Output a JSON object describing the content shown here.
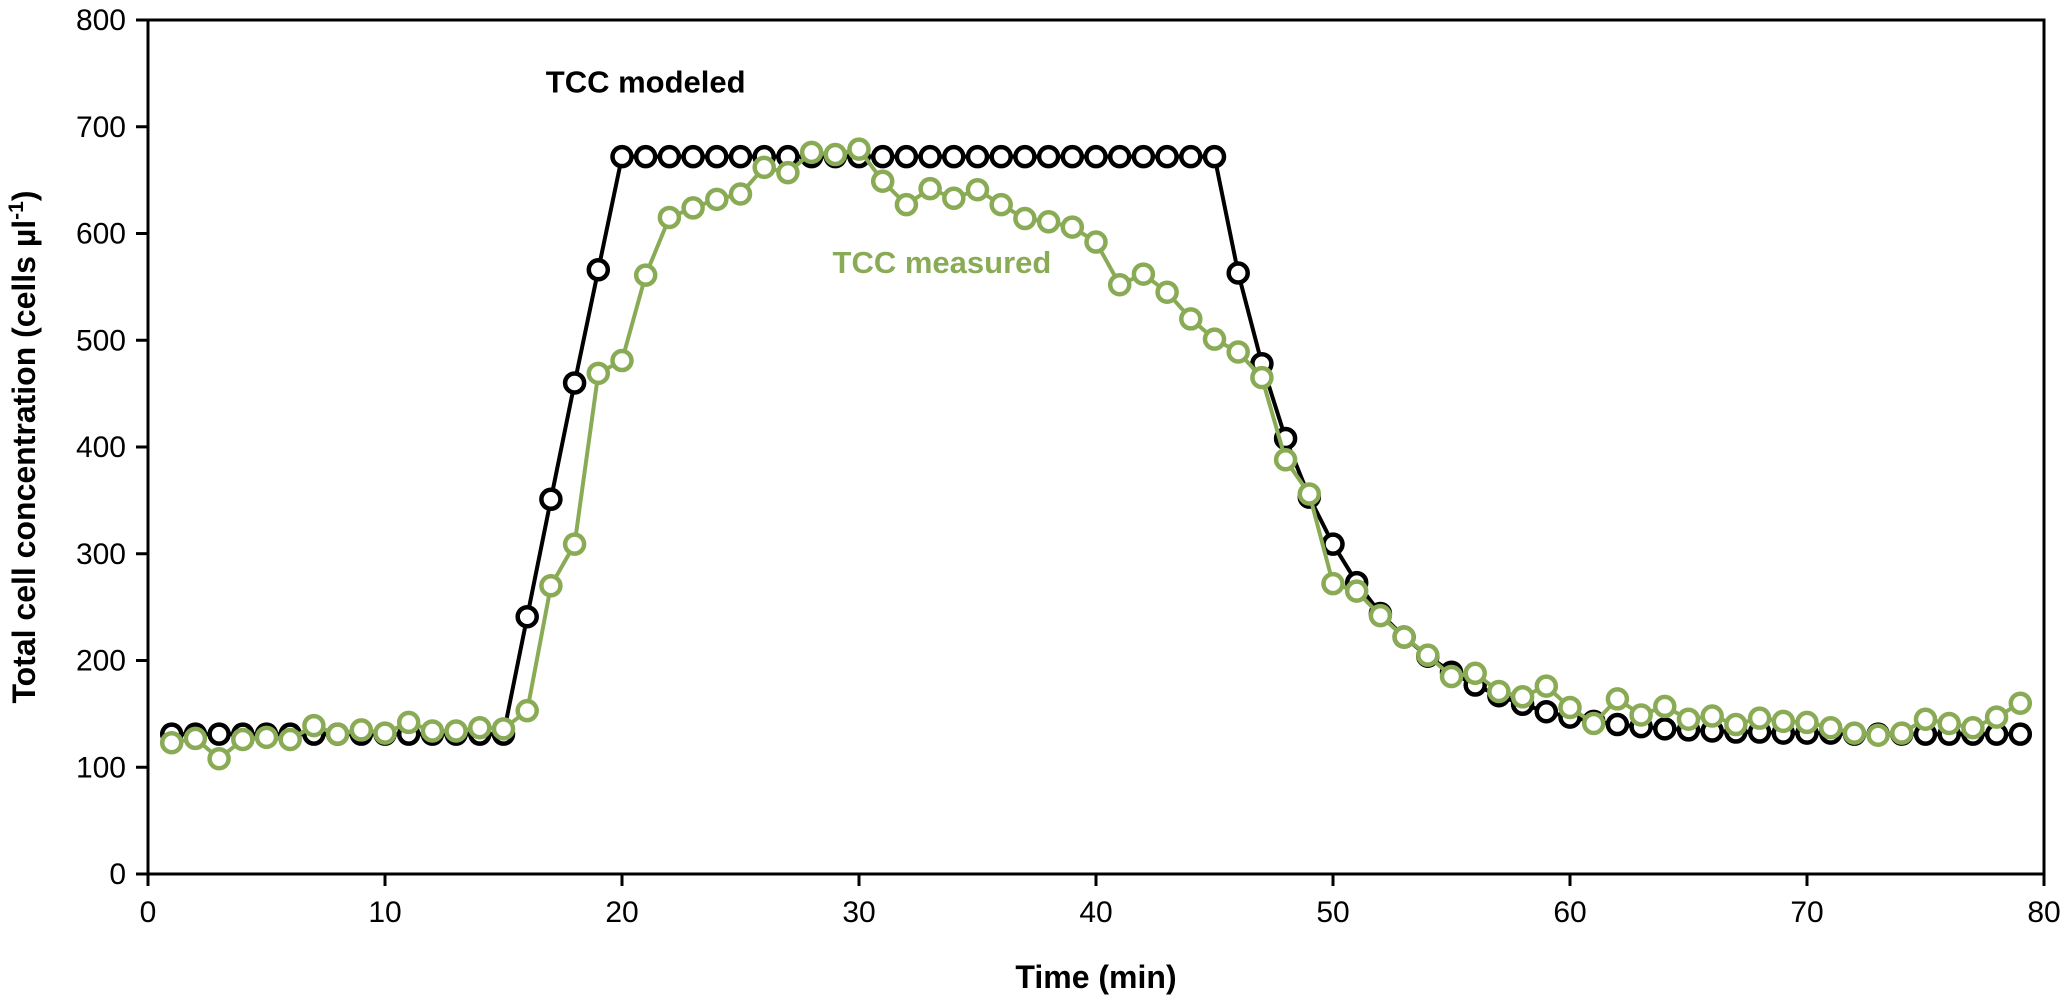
{
  "chart_data": {
    "type": "line",
    "title": "",
    "xlabel": "Time (min)",
    "ylabel_main": "Total cell concentration (cells µl",
    "ylabel_sup": "-1",
    "ylabel_close": ")",
    "xlim": [
      0,
      80
    ],
    "ylim": [
      0,
      800
    ],
    "xticks": [
      0,
      10,
      20,
      30,
      40,
      50,
      60,
      70,
      80
    ],
    "yticks": [
      0,
      100,
      200,
      300,
      400,
      500,
      600,
      700,
      800
    ],
    "grid": false,
    "series": [
      {
        "name": "TCC modeled",
        "color": "#000000",
        "marker": "open-circle",
        "x": [
          1,
          2,
          3,
          4,
          5,
          6,
          7,
          8,
          9,
          10,
          11,
          12,
          13,
          14,
          15,
          16,
          17,
          18,
          19,
          20,
          21,
          22,
          23,
          24,
          25,
          26,
          27,
          28,
          29,
          30,
          31,
          32,
          33,
          34,
          35,
          36,
          37,
          38,
          39,
          40,
          41,
          42,
          43,
          44,
          45,
          46,
          47,
          48,
          49,
          50,
          51,
          52,
          53,
          54,
          55,
          56,
          57,
          58,
          59,
          60,
          61,
          62,
          63,
          64,
          65,
          66,
          67,
          68,
          69,
          70,
          71,
          72,
          73,
          74,
          75,
          76,
          77,
          78,
          79
        ],
        "y": [
          131,
          131,
          131,
          131,
          131,
          131,
          131,
          131,
          131,
          131,
          131,
          131,
          131,
          131,
          131,
          241,
          351,
          460,
          566,
          672,
          672,
          672,
          672,
          672,
          672,
          672,
          672,
          672,
          672,
          672,
          672,
          672,
          672,
          672,
          672,
          672,
          672,
          672,
          672,
          672,
          672,
          672,
          672,
          672,
          672,
          563,
          478,
          408,
          353,
          309,
          273,
          244,
          222,
          204,
          189,
          177,
          167,
          159,
          152,
          147,
          143,
          140,
          138,
          136,
          135,
          134,
          133,
          133,
          132,
          132,
          132,
          131,
          131,
          131,
          131,
          131,
          131,
          131,
          131
        ]
      },
      {
        "name": "TCC measured",
        "color": "#8aab55",
        "marker": "open-circle",
        "x": [
          1,
          2,
          3,
          4,
          5,
          6,
          7,
          8,
          9,
          10,
          11,
          12,
          13,
          14,
          15,
          16,
          17,
          18,
          19,
          20,
          21,
          22,
          23,
          24,
          25,
          26,
          27,
          28,
          29,
          30,
          31,
          32,
          33,
          34,
          35,
          36,
          37,
          38,
          39,
          40,
          41,
          42,
          43,
          44,
          45,
          46,
          47,
          48,
          49,
          50,
          51,
          52,
          53,
          54,
          55,
          56,
          57,
          58,
          59,
          60,
          61,
          62,
          63,
          64,
          65,
          66,
          67,
          68,
          69,
          70,
          71,
          72,
          73,
          74,
          75,
          76,
          77,
          78,
          79
        ],
        "y": [
          123,
          127,
          108,
          126,
          128,
          126,
          139,
          131,
          135,
          132,
          142,
          134,
          134,
          137,
          136,
          153,
          270,
          309,
          469,
          481,
          561,
          615,
          624,
          632,
          637,
          662,
          657,
          676,
          674,
          679,
          649,
          627,
          642,
          633,
          641,
          627,
          614,
          611,
          606,
          592,
          552,
          562,
          545,
          520,
          501,
          489,
          465,
          388,
          356,
          272,
          265,
          242,
          222,
          205,
          185,
          188,
          171,
          166,
          176,
          156,
          141,
          164,
          149,
          157,
          145,
          148,
          140,
          146,
          143,
          142,
          137,
          132,
          130,
          132,
          145,
          141,
          137,
          147,
          160
        ]
      }
    ],
    "annotations": [
      {
        "text": "TCC modeled",
        "x": 21,
        "y": 732,
        "color": "#000000"
      },
      {
        "text": "TCC measured",
        "x": 33.5,
        "y": 563,
        "color": "#8aab55"
      }
    ]
  }
}
